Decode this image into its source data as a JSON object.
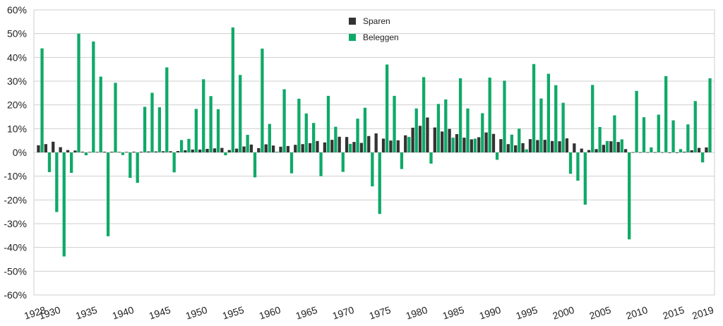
{
  "chart_data": {
    "type": "bar",
    "title": "",
    "xlabel": "",
    "ylabel": "",
    "ylim": [
      -60,
      60
    ],
    "y_ticks": [
      60,
      50,
      40,
      30,
      20,
      10,
      0,
      -10,
      -20,
      -30,
      -40,
      -50,
      -60
    ],
    "y_tick_suffix": "%",
    "x_tick_labels": [
      "1928",
      "1930",
      "1935",
      "1940",
      "1945",
      "1950",
      "1955",
      "1960",
      "1965",
      "1970",
      "1975",
      "1980",
      "1985",
      "1990",
      "1995",
      "2000",
      "2005",
      "2010",
      "2015",
      "2019"
    ],
    "grid": true,
    "legend_position": "top-center",
    "categories": [
      1928,
      1929,
      1930,
      1931,
      1932,
      1933,
      1934,
      1935,
      1936,
      1937,
      1938,
      1939,
      1940,
      1941,
      1942,
      1943,
      1944,
      1945,
      1946,
      1947,
      1948,
      1949,
      1950,
      1951,
      1952,
      1953,
      1954,
      1955,
      1956,
      1957,
      1958,
      1959,
      1960,
      1961,
      1962,
      1963,
      1964,
      1965,
      1966,
      1967,
      1968,
      1969,
      1970,
      1971,
      1972,
      1973,
      1974,
      1975,
      1976,
      1977,
      1978,
      1979,
      1980,
      1981,
      1982,
      1983,
      1984,
      1985,
      1986,
      1987,
      1988,
      1989,
      1990,
      1991,
      1992,
      1993,
      1994,
      1995,
      1996,
      1997,
      1998,
      1999,
      2000,
      2001,
      2002,
      2003,
      2004,
      2005,
      2006,
      2007,
      2008,
      2009,
      2010,
      2011,
      2012,
      2013,
      2014,
      2015,
      2016,
      2017,
      2018,
      2019
    ],
    "series": [
      {
        "name": "Sparen",
        "color": "#333333",
        "values": [
          3.0,
          3.5,
          4.5,
          2.2,
          1.0,
          0.8,
          0.3,
          0.2,
          0.2,
          0.3,
          0.3,
          0.2,
          0.2,
          0.3,
          0.3,
          0.4,
          0.4,
          0.5,
          0.5,
          0.6,
          0.9,
          1.2,
          1.2,
          1.5,
          1.7,
          1.9,
          1.0,
          1.6,
          2.5,
          3.3,
          1.8,
          3.4,
          2.9,
          2.4,
          2.7,
          3.2,
          3.5,
          3.9,
          4.8,
          4.2,
          5.3,
          6.6,
          6.5,
          4.4,
          4.0,
          6.9,
          8.0,
          5.8,
          5.0,
          5.1,
          7.2,
          10.4,
          11.2,
          14.7,
          10.5,
          8.8,
          9.9,
          7.7,
          6.2,
          5.5,
          6.4,
          8.4,
          7.8,
          5.6,
          3.5,
          3.0,
          3.9,
          5.6,
          5.2,
          5.3,
          4.8,
          4.7,
          5.9,
          3.8,
          1.6,
          1.0,
          1.4,
          3.2,
          4.7,
          4.4,
          1.4,
          0.1,
          0.1,
          0.1,
          0.1,
          0.1,
          0.0,
          0.0,
          0.3,
          0.9,
          1.9,
          2.1
        ]
      },
      {
        "name": "Beleggen",
        "color": "#0fa968",
        "values": [
          43.8,
          -8.3,
          -25.1,
          -43.8,
          -8.6,
          50.0,
          -1.2,
          46.7,
          31.9,
          -35.3,
          29.3,
          -1.1,
          -10.7,
          -12.8,
          19.2,
          25.1,
          19.0,
          35.8,
          -8.4,
          5.2,
          5.7,
          18.3,
          30.8,
          23.7,
          18.2,
          -1.2,
          52.6,
          32.6,
          7.4,
          -10.5,
          43.7,
          12.0,
          0.3,
          26.6,
          -8.8,
          22.6,
          16.4,
          12.4,
          -10.0,
          23.8,
          10.8,
          -8.2,
          3.6,
          14.2,
          18.8,
          -14.3,
          -25.9,
          37.0,
          23.8,
          -7.0,
          6.5,
          18.5,
          31.7,
          -4.7,
          20.4,
          22.3,
          6.2,
          31.2,
          18.5,
          5.8,
          16.5,
          31.5,
          -3.1,
          30.2,
          7.5,
          10.0,
          1.3,
          37.2,
          22.7,
          33.1,
          28.3,
          20.9,
          -9.0,
          -11.9,
          -22.0,
          28.4,
          10.7,
          4.8,
          15.6,
          5.5,
          -36.6,
          25.9,
          14.8,
          2.1,
          15.9,
          32.1,
          13.5,
          1.4,
          11.8,
          21.6,
          -4.2,
          31.2
        ]
      }
    ]
  }
}
